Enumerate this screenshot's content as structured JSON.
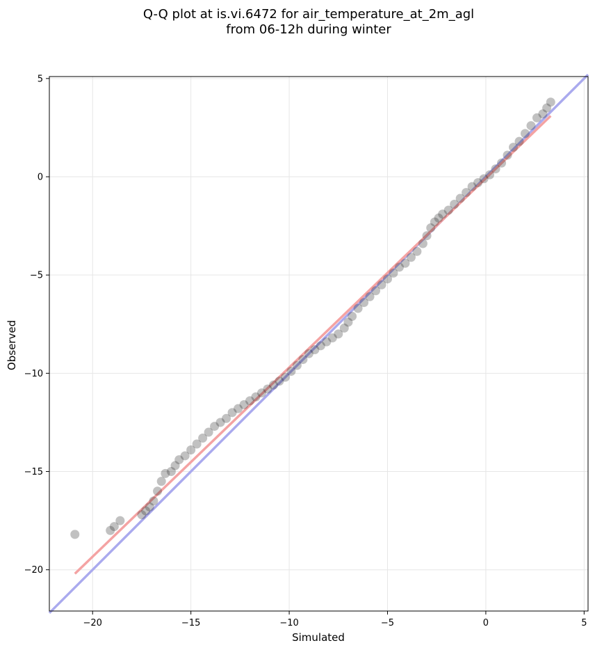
{
  "chart_data": {
    "type": "scatter",
    "title_lines": [
      "Q-Q plot at is.vi.6472 for air_temperature_at_2m_agl",
      "from 06-12h during winter"
    ],
    "xlabel": "Simulated",
    "ylabel": "Observed",
    "xlim": [
      -22.2,
      5.2
    ],
    "ylim": [
      -22.1,
      5.1
    ],
    "xticks": [
      -20,
      -15,
      -10,
      -5,
      0,
      5
    ],
    "yticks": [
      -20,
      -15,
      -10,
      -5,
      0,
      5
    ],
    "xtick_labels": [
      "−20",
      "−15",
      "−10",
      "−5",
      "0",
      "5"
    ],
    "ytick_labels": [
      "−20",
      "−15",
      "−10",
      "−5",
      "0",
      "5"
    ],
    "grid": true,
    "reference_lines": [
      {
        "kind": "identity",
        "color": "#aaaaee",
        "points": [
          [
            -22.2,
            -22.2
          ],
          [
            5.2,
            5.2
          ]
        ]
      },
      {
        "kind": "fit",
        "color": "#f4a3a3",
        "points": [
          [
            -20.9,
            -20.2
          ],
          [
            3.3,
            3.1
          ]
        ]
      }
    ],
    "point_color": "#222222",
    "series": [
      {
        "points": [
          [
            -20.9,
            -18.2
          ],
          [
            -19.1,
            -18.0
          ],
          [
            -18.9,
            -17.8
          ],
          [
            -18.6,
            -17.5
          ],
          [
            -17.5,
            -17.2
          ],
          [
            -17.3,
            -17.0
          ],
          [
            -17.1,
            -16.8
          ],
          [
            -16.9,
            -16.5
          ],
          [
            -16.7,
            -16.0
          ],
          [
            -16.5,
            -15.5
          ],
          [
            -16.3,
            -15.1
          ],
          [
            -16.0,
            -15.0
          ],
          [
            -15.8,
            -14.7
          ],
          [
            -15.6,
            -14.4
          ],
          [
            -15.3,
            -14.2
          ],
          [
            -15.0,
            -13.9
          ],
          [
            -14.7,
            -13.6
          ],
          [
            -14.4,
            -13.3
          ],
          [
            -14.1,
            -13.0
          ],
          [
            -13.8,
            -12.7
          ],
          [
            -13.5,
            -12.5
          ],
          [
            -13.2,
            -12.3
          ],
          [
            -12.9,
            -12.0
          ],
          [
            -12.6,
            -11.8
          ],
          [
            -12.3,
            -11.6
          ],
          [
            -12.0,
            -11.4
          ],
          [
            -11.7,
            -11.2
          ],
          [
            -11.4,
            -11.0
          ],
          [
            -11.1,
            -10.8
          ],
          [
            -10.8,
            -10.6
          ],
          [
            -10.5,
            -10.4
          ],
          [
            -10.2,
            -10.2
          ],
          [
            -9.9,
            -9.9
          ],
          [
            -9.6,
            -9.6
          ],
          [
            -9.3,
            -9.3
          ],
          [
            -9.0,
            -9.0
          ],
          [
            -8.7,
            -8.8
          ],
          [
            -8.4,
            -8.6
          ],
          [
            -8.1,
            -8.4
          ],
          [
            -7.8,
            -8.2
          ],
          [
            -7.5,
            -8.0
          ],
          [
            -7.2,
            -7.7
          ],
          [
            -7.0,
            -7.4
          ],
          [
            -6.8,
            -7.1
          ],
          [
            -6.5,
            -6.7
          ],
          [
            -6.2,
            -6.4
          ],
          [
            -5.9,
            -6.1
          ],
          [
            -5.6,
            -5.8
          ],
          [
            -5.3,
            -5.5
          ],
          [
            -5.0,
            -5.2
          ],
          [
            -4.7,
            -4.9
          ],
          [
            -4.4,
            -4.6
          ],
          [
            -4.1,
            -4.4
          ],
          [
            -3.8,
            -4.1
          ],
          [
            -3.5,
            -3.8
          ],
          [
            -3.2,
            -3.4
          ],
          [
            -3.0,
            -3.0
          ],
          [
            -2.8,
            -2.6
          ],
          [
            -2.6,
            -2.3
          ],
          [
            -2.4,
            -2.1
          ],
          [
            -2.2,
            -1.9
          ],
          [
            -1.9,
            -1.7
          ],
          [
            -1.6,
            -1.4
          ],
          [
            -1.3,
            -1.1
          ],
          [
            -1.0,
            -0.8
          ],
          [
            -0.7,
            -0.5
          ],
          [
            -0.4,
            -0.3
          ],
          [
            -0.1,
            -0.1
          ],
          [
            0.2,
            0.1
          ],
          [
            0.5,
            0.4
          ],
          [
            0.8,
            0.7
          ],
          [
            1.1,
            1.1
          ],
          [
            1.4,
            1.5
          ],
          [
            1.7,
            1.8
          ],
          [
            2.0,
            2.2
          ],
          [
            2.3,
            2.6
          ],
          [
            2.6,
            3.0
          ],
          [
            2.9,
            3.2
          ],
          [
            3.1,
            3.5
          ],
          [
            3.3,
            3.8
          ]
        ]
      }
    ]
  }
}
